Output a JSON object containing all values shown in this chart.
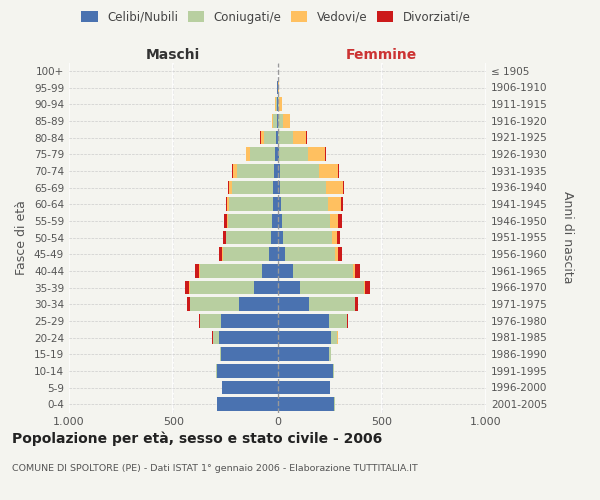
{
  "age_groups": [
    "0-4",
    "5-9",
    "10-14",
    "15-19",
    "20-24",
    "25-29",
    "30-34",
    "35-39",
    "40-44",
    "45-49",
    "50-54",
    "55-59",
    "60-64",
    "65-69",
    "70-74",
    "75-79",
    "80-84",
    "85-89",
    "90-94",
    "95-99",
    "100+"
  ],
  "birth_years": [
    "2001-2005",
    "1996-2000",
    "1991-1995",
    "1986-1990",
    "1981-1985",
    "1976-1980",
    "1971-1975",
    "1966-1970",
    "1961-1965",
    "1956-1960",
    "1951-1955",
    "1946-1950",
    "1941-1945",
    "1936-1940",
    "1931-1935",
    "1926-1930",
    "1921-1925",
    "1916-1920",
    "1911-1915",
    "1906-1910",
    "≤ 1905"
  ],
  "maschi_celibi": [
    290,
    265,
    290,
    270,
    280,
    270,
    185,
    115,
    75,
    40,
    30,
    28,
    22,
    22,
    18,
    10,
    5,
    2,
    1,
    1,
    0
  ],
  "maschi_coniugati": [
    2,
    2,
    4,
    8,
    28,
    100,
    235,
    305,
    295,
    220,
    215,
    210,
    210,
    195,
    175,
    120,
    60,
    18,
    5,
    2,
    0
  ],
  "maschi_vedovi": [
    0,
    0,
    0,
    0,
    2,
    4,
    2,
    4,
    5,
    4,
    4,
    5,
    10,
    16,
    22,
    20,
    15,
    8,
    4,
    1,
    0
  ],
  "maschi_divorziati": [
    0,
    0,
    0,
    0,
    2,
    2,
    10,
    18,
    22,
    15,
    12,
    12,
    5,
    5,
    5,
    3,
    2,
    0,
    0,
    0,
    0
  ],
  "femmine_nubili": [
    272,
    252,
    268,
    248,
    258,
    245,
    152,
    108,
    72,
    38,
    25,
    20,
    18,
    14,
    10,
    8,
    4,
    2,
    0,
    0,
    0
  ],
  "femmine_coniugate": [
    2,
    2,
    4,
    9,
    28,
    88,
    218,
    308,
    292,
    238,
    238,
    232,
    225,
    218,
    188,
    138,
    72,
    24,
    8,
    2,
    0
  ],
  "femmine_vedove": [
    0,
    0,
    0,
    0,
    2,
    2,
    4,
    6,
    8,
    14,
    24,
    40,
    62,
    82,
    92,
    82,
    62,
    32,
    15,
    3,
    0
  ],
  "femmine_divorziate": [
    0,
    0,
    0,
    0,
    2,
    2,
    10,
    22,
    25,
    20,
    15,
    15,
    8,
    5,
    5,
    3,
    2,
    0,
    0,
    0,
    0
  ],
  "color_celibi": "#4a72b0",
  "color_coniugati": "#b8cfa0",
  "color_vedovi": "#ffc060",
  "color_divorziati": "#cc1a1a",
  "bg_color": "#f4f4ef",
  "xlim": 1000,
  "title": "Popolazione per età, sesso e stato civile - 2006",
  "subtitle": "COMUNE DI SPOLTORE (PE) - Dati ISTAT 1° gennaio 2006 - Elaborazione TUTTITALIA.IT",
  "maschi_label": "Maschi",
  "femmine_label": "Femmine",
  "ylabel_left": "Fasce di età",
  "ylabel_right": "Anni di nascita",
  "legend_labels": [
    "Celibi/Nubili",
    "Coniugati/e",
    "Vedovi/e",
    "Divorziati/e"
  ]
}
